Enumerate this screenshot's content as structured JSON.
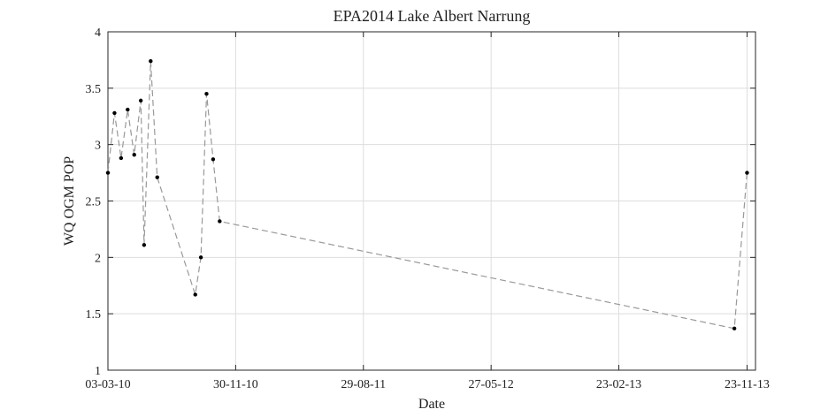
{
  "chart_data": {
    "type": "line",
    "title": "EPA2014 Lake Albert Narrung",
    "xlabel": "Date",
    "ylabel": "WQ OGM POP",
    "x_type": "date",
    "xlim": [
      "2010-03-03",
      "2013-12-11"
    ],
    "ylim": [
      1,
      4
    ],
    "xticks": [
      "2010-03-03",
      "2010-11-30",
      "2011-08-29",
      "2012-05-27",
      "2013-02-23",
      "2013-11-23"
    ],
    "xtick_labels": [
      "03-03-10",
      "30-11-10",
      "29-08-11",
      "27-05-12",
      "23-02-13",
      "23-11-13"
    ],
    "yticks": [
      1,
      1.5,
      2,
      2.5,
      3,
      3.5,
      4
    ],
    "ytick_labels": [
      "1",
      "1.5",
      "2",
      "2.5",
      "3",
      "3.5",
      "4"
    ],
    "grid": true,
    "line_style": "dashed",
    "line_color": "#999999",
    "marker_color": "#000000",
    "series": [
      {
        "x": [
          "2010-03-03",
          "2010-03-17",
          "2010-03-31",
          "2010-04-14",
          "2010-04-28",
          "2010-05-12",
          "2010-05-19",
          "2010-06-02",
          "2010-06-16",
          "2010-09-05",
          "2010-09-17",
          "2010-09-29",
          "2010-10-13",
          "2010-10-27",
          "2013-10-27",
          "2013-11-23"
        ],
        "y": [
          2.75,
          3.28,
          2.88,
          3.31,
          2.91,
          3.39,
          2.11,
          3.74,
          2.71,
          1.67,
          2.0,
          3.45,
          2.87,
          2.32,
          1.37,
          2.75
        ]
      }
    ]
  }
}
